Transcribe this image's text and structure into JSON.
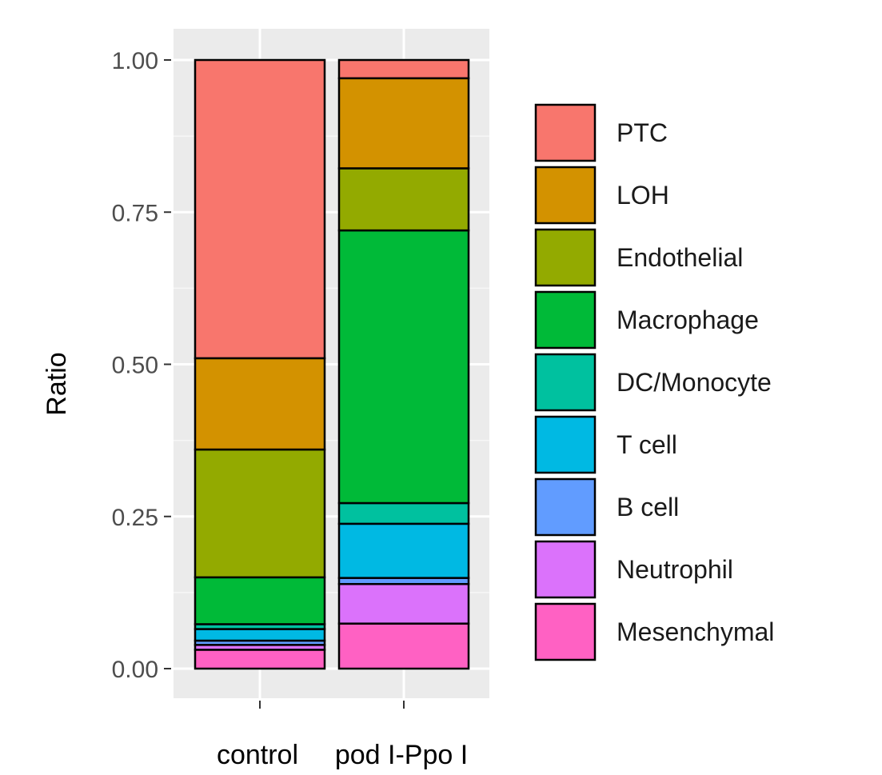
{
  "chart_data": {
    "type": "bar",
    "stacked": true,
    "ylabel": "Ratio",
    "xlabel": "",
    "ylim": [
      0,
      1.05
    ],
    "y_ticks": [
      0.0,
      0.25,
      0.5,
      0.75,
      1.0
    ],
    "y_tick_labels": [
      "0.00",
      "0.25",
      "0.50",
      "0.75",
      "1.00"
    ],
    "categories": [
      "control",
      "pod I-Ppo I"
    ],
    "grid": true,
    "legend_position": "right",
    "series": [
      {
        "name": "PTC",
        "color": "#F8766D",
        "values": [
          0.49,
          0.03
        ]
      },
      {
        "name": "LOH",
        "color": "#D39200",
        "values": [
          0.15,
          0.148
        ]
      },
      {
        "name": "Endothelial",
        "color": "#93AA00",
        "values": [
          0.21,
          0.102
        ]
      },
      {
        "name": "Macrophage",
        "color": "#00BA38",
        "values": [
          0.077,
          0.448
        ]
      },
      {
        "name": "DC/Monocyte",
        "color": "#00C19F",
        "values": [
          0.008,
          0.034
        ]
      },
      {
        "name": "T cell",
        "color": "#00B9E3",
        "values": [
          0.019,
          0.089
        ]
      },
      {
        "name": "B cell",
        "color": "#619CFF",
        "values": [
          0.007,
          0.01
        ]
      },
      {
        "name": "Neutrophil",
        "color": "#DB72FB",
        "values": [
          0.008,
          0.065
        ]
      },
      {
        "name": "Mesenchymal",
        "color": "#FF61C3",
        "values": [
          0.031,
          0.074
        ]
      }
    ]
  }
}
